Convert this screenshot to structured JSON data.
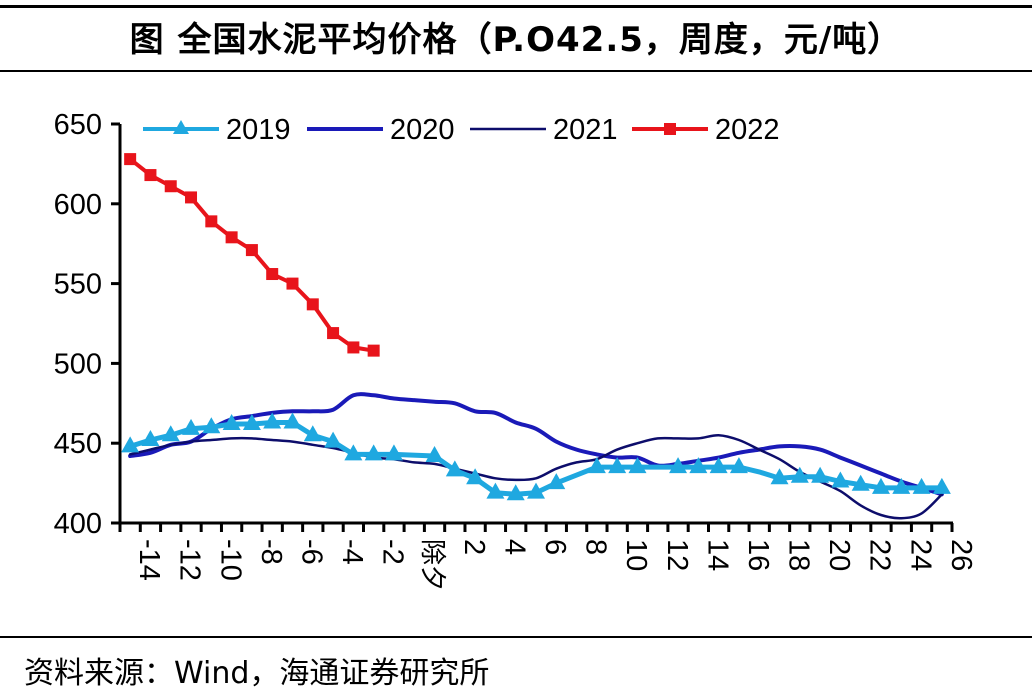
{
  "title": "图  全国水泥平均价格（P.O42.5，周度，元/吨）",
  "source": "资料来源：Wind，海通证券研究所",
  "chart_data": {
    "type": "line",
    "title": "全国水泥平均价格（P.O42.5，周度，元/吨）",
    "xlabel": "",
    "ylabel": "",
    "ylim": [
      400,
      650
    ],
    "yticks": [
      400,
      450,
      500,
      550,
      600,
      650
    ],
    "categories": [
      "-14",
      "-13",
      "-12",
      "-11",
      "-10",
      "-9",
      "-8",
      "-7",
      "-6",
      "-5",
      "-4",
      "-3",
      "-2",
      "-1",
      "除夕",
      "1",
      "2",
      "3",
      "4",
      "5",
      "6",
      "7",
      "8",
      "9",
      "10",
      "11",
      "12",
      "13",
      "14",
      "15",
      "16",
      "17",
      "18",
      "19",
      "20",
      "21",
      "22",
      "23",
      "24",
      "25",
      "26"
    ],
    "xtick_labels": [
      "-14",
      "-12",
      "-10",
      "-8",
      "-6",
      "-4",
      "-2",
      "除夕",
      "2",
      "4",
      "6",
      "8",
      "10",
      "12",
      "14",
      "16",
      "18",
      "20",
      "22",
      "24",
      "26"
    ],
    "legend_position": "top",
    "series": [
      {
        "name": "2019",
        "color": "#1FA8E0",
        "marker": "triangle",
        "values": [
          448,
          452,
          455,
          459,
          460,
          462,
          462,
          463,
          463,
          455,
          451,
          443,
          443,
          443,
          null,
          442,
          433,
          428,
          419,
          418,
          419,
          425,
          430,
          435,
          435,
          435,
          435,
          435,
          435,
          435,
          435,
          432,
          428,
          429,
          429,
          426,
          424,
          422,
          422,
          422,
          422
        ],
        "markers": [
          true,
          true,
          true,
          true,
          true,
          true,
          true,
          true,
          true,
          true,
          true,
          true,
          true,
          true,
          false,
          true,
          true,
          true,
          true,
          true,
          true,
          true,
          false,
          true,
          true,
          true,
          false,
          true,
          true,
          true,
          true,
          false,
          true,
          true,
          true,
          true,
          true,
          true,
          true,
          true,
          true
        ]
      },
      {
        "name": "2020",
        "color": "#1A1AB8",
        "marker": "none",
        "values": [
          442,
          444,
          449,
          451,
          459,
          465,
          467,
          469,
          470,
          470,
          471,
          480,
          480,
          478,
          477,
          476,
          475,
          470,
          469,
          463,
          459,
          451,
          446,
          443,
          441,
          441,
          436,
          437,
          439,
          441,
          444,
          446,
          448,
          448,
          446,
          441,
          436,
          431,
          426,
          422,
          418
        ]
      },
      {
        "name": "2021",
        "color": "#0D0D6B",
        "marker": "none",
        "values": [
          443,
          446,
          449,
          451,
          452,
          453,
          453,
          452,
          451,
          449,
          447,
          444,
          441,
          440,
          438,
          437,
          434,
          431,
          428,
          427,
          428,
          434,
          438,
          440,
          446,
          450,
          453,
          453,
          453,
          455,
          452,
          446,
          440,
          432,
          426,
          420,
          411,
          405,
          403,
          406,
          418
        ]
      },
      {
        "name": "2022",
        "color": "#E8141B",
        "marker": "square",
        "values": [
          628,
          618,
          611,
          604,
          589,
          579,
          571,
          556,
          550,
          537,
          519,
          510,
          508,
          null,
          null,
          null,
          null,
          null,
          null,
          null,
          null,
          null,
          null,
          null,
          null,
          null,
          null,
          null,
          null,
          null,
          null,
          null,
          null,
          null,
          null,
          null,
          null,
          null,
          null,
          null,
          null
        ]
      }
    ]
  },
  "icons": {
    "series_2019_marker": "triangle",
    "series_2022_marker": "square"
  }
}
